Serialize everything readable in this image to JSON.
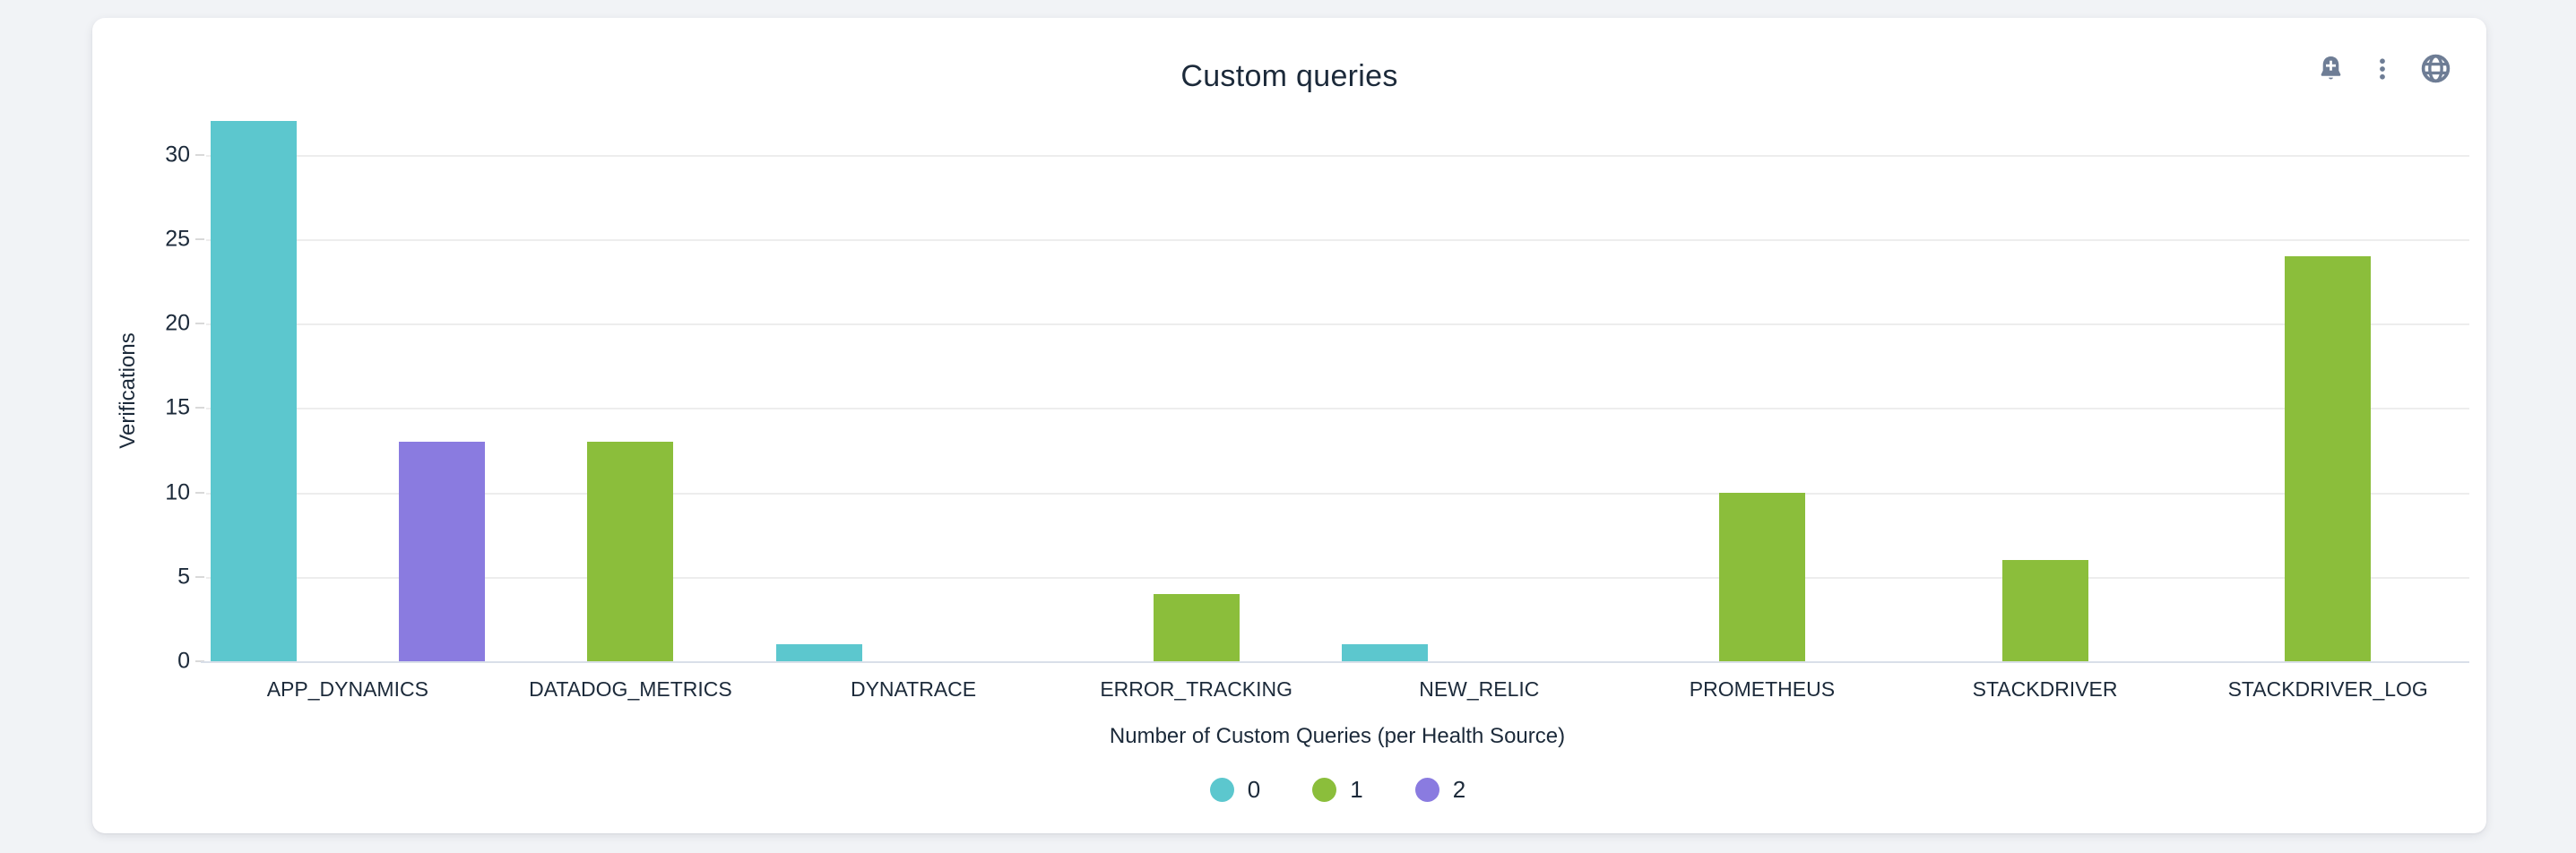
{
  "panel": {
    "title": "Custom queries",
    "toolbar": {
      "icons": [
        "bell-plus-icon",
        "kebab-menu-icon",
        "globe-icon"
      ]
    }
  },
  "colors": {
    "pagebg": "#F1F3F6",
    "cardbg": "#FFFFFF",
    "text": "#1C2A3A",
    "icon": "#6E7D95",
    "grid": "#EDEDED",
    "axisline": "#D9DFE9",
    "tickmark": "#D9D9D9"
  },
  "chart_data": {
    "type": "bar",
    "title": "Custom queries",
    "xlabel": "Number of Custom Queries (per Health Source)",
    "ylabel": "Verifications",
    "categories": [
      "APP_DYNAMICS",
      "DATADOG_METRICS",
      "DYNATRACE",
      "ERROR_TRACKING",
      "NEW_RELIC",
      "PROMETHEUS",
      "STACKDRIVER",
      "STACKDRIVER_LOG"
    ],
    "series": [
      {
        "name": "0",
        "color": "#5CC7CE",
        "values": [
          32,
          0,
          1,
          0,
          1,
          0,
          0,
          0
        ]
      },
      {
        "name": "1",
        "color": "#8BBE3B",
        "values": [
          0,
          13,
          0,
          4,
          0,
          10,
          6,
          24
        ]
      },
      {
        "name": "2",
        "color": "#8A7BE0",
        "values": [
          13,
          0,
          0,
          0,
          0,
          0,
          0,
          0
        ]
      }
    ],
    "yticks": [
      0,
      5,
      10,
      15,
      20,
      25,
      30
    ],
    "ylim": [
      0,
      32
    ],
    "grid": true,
    "legend_position": "bottom",
    "legend": [
      "0",
      "1",
      "2"
    ]
  }
}
